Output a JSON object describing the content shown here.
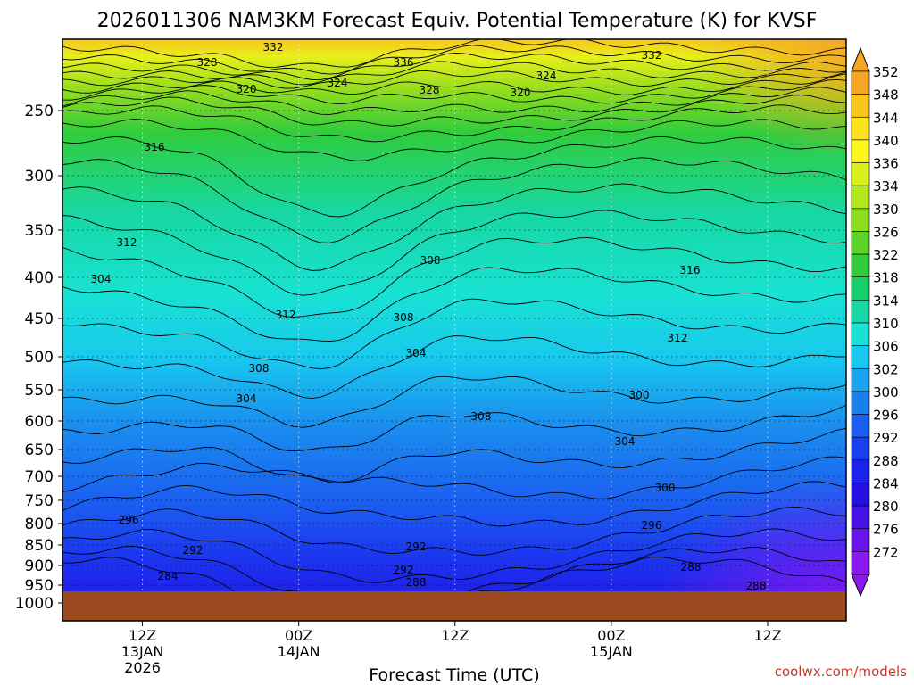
{
  "chart_data": {
    "type": "heatmap",
    "title": "2026011306 NAM3KM Forecast Equiv. Potential Temperature (K) for KVSF",
    "xlabel": "Forecast Time (UTC)",
    "ylabel": "",
    "credit": "coolwx.com/models",
    "y_axis": {
      "reversed": true,
      "range": [
        1000,
        200
      ],
      "ticks": [
        "250",
        "300",
        "350",
        "400",
        "450",
        "500",
        "550",
        "600",
        "650",
        "700",
        "750",
        "800",
        "850",
        "900",
        "950",
        "1000"
      ]
    },
    "x_axis": {
      "range_hours": [
        0,
        60
      ],
      "ticks": [
        {
          "line1": "12Z",
          "line2": "13JAN",
          "line3": "2026",
          "hour": 6
        },
        {
          "line1": "00Z",
          "line2": "14JAN",
          "line3": "",
          "hour": 18
        },
        {
          "line1": "12Z",
          "line2": "",
          "line3": "",
          "hour": 30
        },
        {
          "line1": "00Z",
          "line2": "15JAN",
          "line3": "",
          "hour": 42
        },
        {
          "line1": "12Z",
          "line2": "",
          "line3": "",
          "hour": 54
        }
      ]
    },
    "colorbar": {
      "unit": "K",
      "labels": [
        "352",
        "348",
        "344",
        "340",
        "336",
        "334",
        "330",
        "326",
        "322",
        "318",
        "314",
        "310",
        "306",
        "302",
        "300",
        "296",
        "292",
        "288",
        "284",
        "280",
        "276",
        "272"
      ],
      "colors": [
        "#f5a623",
        "#f8c61d",
        "#fbe21a",
        "#fdf71b",
        "#d8f01c",
        "#b4e61e",
        "#8ddc1f",
        "#5fd22a",
        "#30cc3c",
        "#17cf6a",
        "#17d8a4",
        "#18e2d3",
        "#18c8ef",
        "#1aa3f0",
        "#1a7fee",
        "#1b5df0",
        "#1c3fef",
        "#1c22ee",
        "#2410e0",
        "#4712e6",
        "#6a14ec",
        "#8a18f2"
      ]
    },
    "contour_labels": [
      "332",
      "328",
      "336",
      "332",
      "324",
      "324",
      "320",
      "328",
      "320",
      "316",
      "316",
      "312",
      "308",
      "304",
      "312",
      "308",
      "312",
      "304",
      "308",
      "304",
      "300",
      "308",
      "304",
      "300",
      "296",
      "292",
      "296",
      "292",
      "288",
      "292",
      "284",
      "288",
      "288"
    ]
  }
}
